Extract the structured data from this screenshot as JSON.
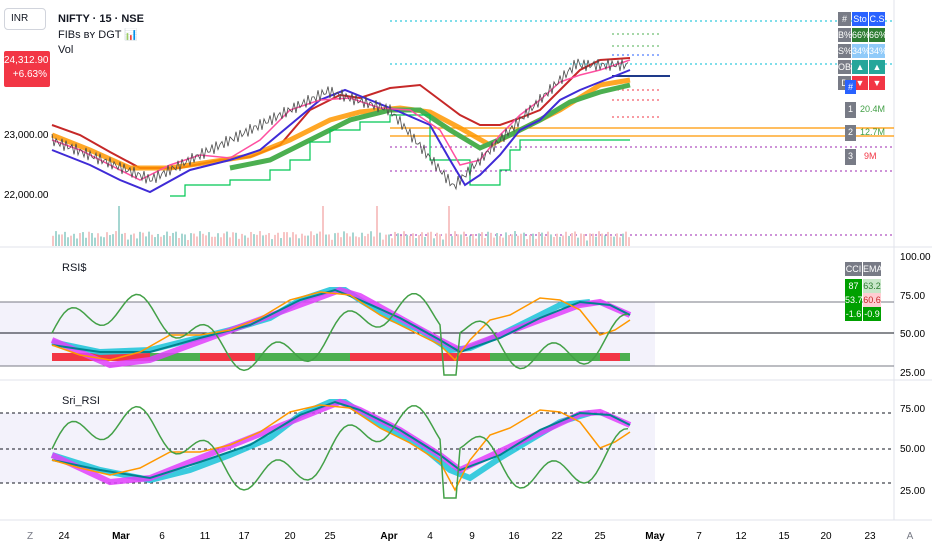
{
  "symbol": {
    "currency": "INR",
    "title": "NIFTY · 15 · NSE",
    "indicator_1": "FIBs ʙʏ DGT 📊",
    "indicator_2": "Vol",
    "price": "24,312.90",
    "change": "+6.63%"
  },
  "price_axis": {
    "labels": [
      "23,000.00",
      "22,000.00"
    ]
  },
  "rsi_pane": {
    "label": "RSI$",
    "axis_labels": [
      "100.00",
      "75.00",
      "50.00",
      "25.00"
    ],
    "table": {
      "headers": [
        "CCI",
        "EMA"
      ],
      "rows": [
        [
          "87",
          "63.2"
        ],
        [
          "53.7",
          "60.6"
        ],
        [
          "-1.6",
          "-0.9"
        ]
      ]
    }
  },
  "sri_pane": {
    "label": "Sri_RSI",
    "axis_labels": [
      "75.00",
      "50.00",
      "25.00"
    ]
  },
  "status_table": {
    "header": [
      "#",
      "Sto",
      "C.S"
    ],
    "rows": [
      [
        "B%",
        "66%",
        "66%"
      ],
      [
        "S%",
        "34%",
        "34%"
      ],
      [
        "OB",
        "▲",
        "▲"
      ],
      [
        "D",
        "▼",
        "▼"
      ]
    ]
  },
  "volume_table": {
    "header": "#",
    "rows": [
      [
        "1",
        "20.4M"
      ],
      [
        "2",
        "12.7M"
      ],
      [
        "3",
        "9M"
      ]
    ]
  },
  "time_axis": {
    "labels": [
      "Z",
      "24",
      "Mar",
      "6",
      "11",
      "17",
      "20",
      "25",
      "Apr",
      "4",
      "9",
      "16",
      "22",
      "25",
      "May",
      "7",
      "12",
      "15",
      "20",
      "23",
      "A"
    ]
  },
  "colors": {
    "red": "#f23645",
    "green": "#4caf50",
    "teal": "#26c6da",
    "orange": "#ff9800",
    "purple": "#9c27b0",
    "blue": "#2962ff",
    "magenta": "#e040fb"
  }
}
